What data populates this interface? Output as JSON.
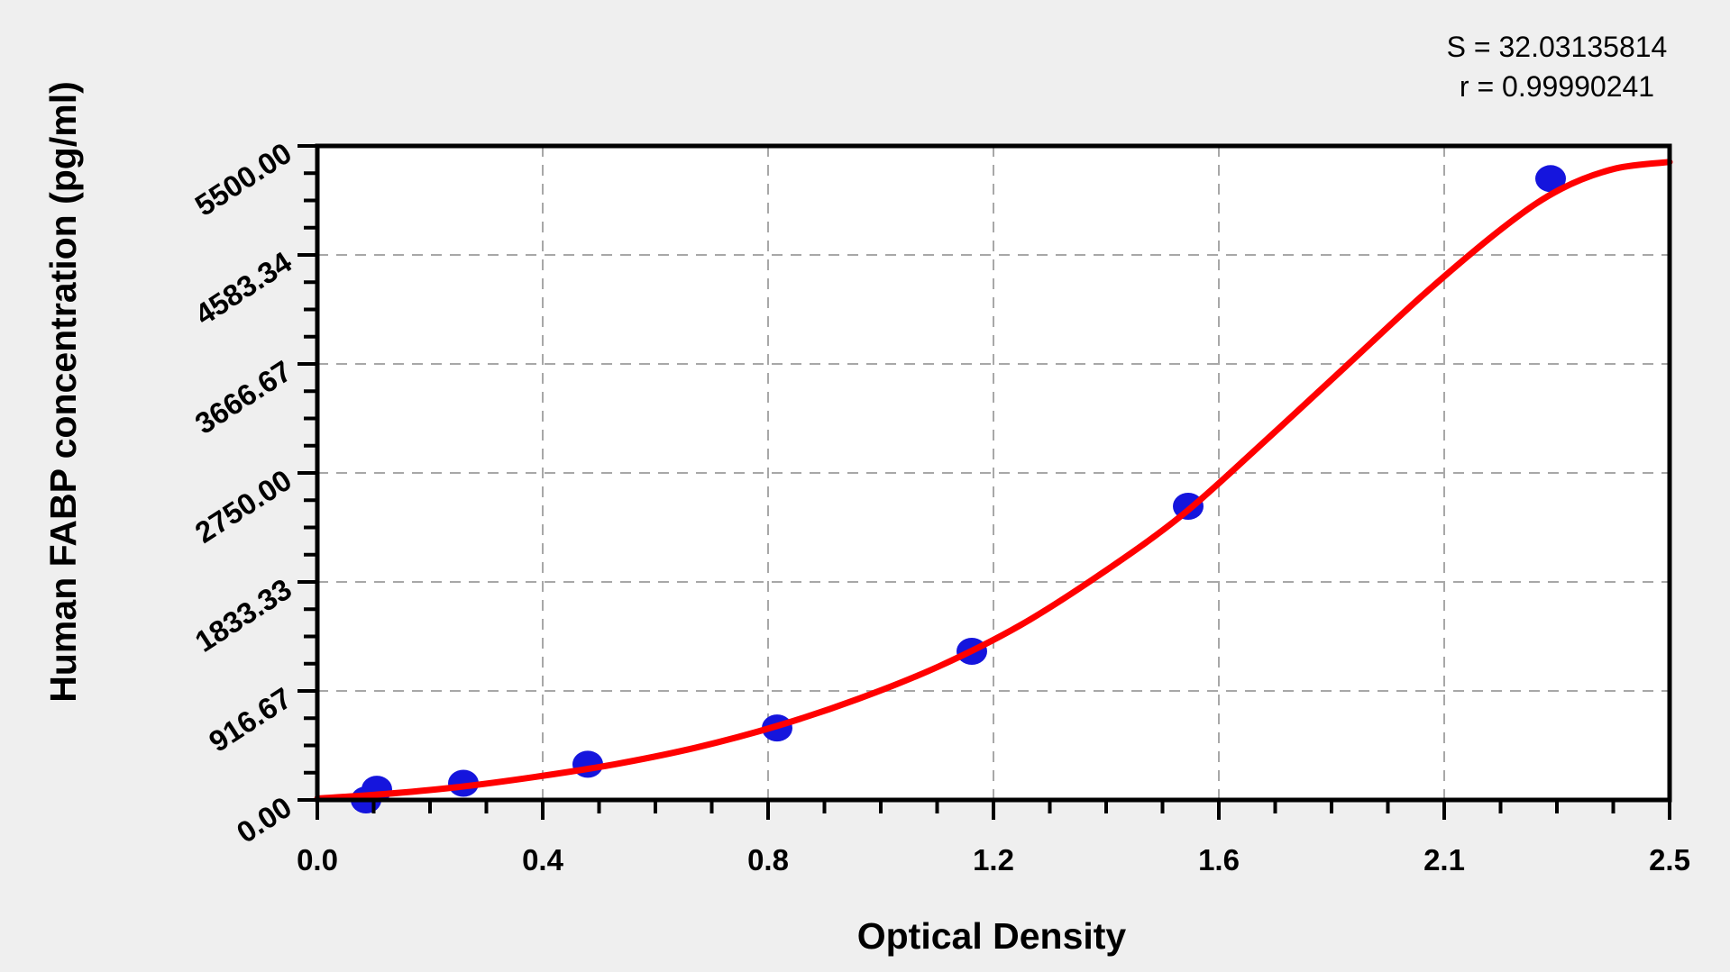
{
  "figure": {
    "background_color": "#efefef",
    "plot_background_color": "#ffffff",
    "border_color": "#000000",
    "grid_color": "#a8a8a8",
    "annotation": {
      "line1": "S = 32.03135814",
      "line2": "r = 0.99990241"
    }
  },
  "chart_data": {
    "type": "scatter",
    "title": "",
    "xlabel": "Optical Density",
    "ylabel": "Human FABP concentration (pg/ml)",
    "xlim": [
      0,
      2.5
    ],
    "ylim": [
      0,
      5500
    ],
    "x_tick_labels": [
      "0.0",
      "0.4",
      "0.8",
      "1.2",
      "1.6",
      "2.1",
      "2.5"
    ],
    "y_tick_labels": [
      "0.00",
      "916.67",
      "1833.33",
      "2750.00",
      "3666.67",
      "4583.34",
      "5500.00"
    ],
    "x_minor_divisions_per_major": 4,
    "y_minor_divisions_per_major": 4,
    "grid": "dashed gridlines at every major tick, both axes",
    "legend": "none",
    "fit_statistics": {
      "S": "32.03135814",
      "r": "0.99990241"
    },
    "series": [
      {
        "name": "standard data points",
        "type": "scatter",
        "marker": "ellipse",
        "color": "#1515dd",
        "points": [
          {
            "od": 0.09,
            "conc": 0
          },
          {
            "od": 0.11,
            "conc": 90
          },
          {
            "od": 0.27,
            "conc": 140
          },
          {
            "od": 0.5,
            "conc": 300
          },
          {
            "od": 0.85,
            "conc": 605
          },
          {
            "od": 1.21,
            "conc": 1250
          },
          {
            "od": 1.61,
            "conc": 2470
          },
          {
            "od": 2.28,
            "conc": 5225
          }
        ]
      },
      {
        "name": "4PL fitted standard curve",
        "type": "line",
        "color": "#ff0000",
        "points": [
          {
            "od": 0.0,
            "conc": 12
          },
          {
            "od": 0.12,
            "conc": 48
          },
          {
            "od": 0.25,
            "conc": 103
          },
          {
            "od": 0.4,
            "conc": 192
          },
          {
            "od": 0.55,
            "conc": 300
          },
          {
            "od": 0.7,
            "conc": 440
          },
          {
            "od": 0.85,
            "conc": 622
          },
          {
            "od": 1.0,
            "conc": 850
          },
          {
            "od": 1.15,
            "conc": 1125
          },
          {
            "od": 1.3,
            "conc": 1470
          },
          {
            "od": 1.45,
            "conc": 1905
          },
          {
            "od": 1.6,
            "conc": 2400
          },
          {
            "od": 1.75,
            "conc": 3010
          },
          {
            "od": 1.9,
            "conc": 3640
          },
          {
            "od": 2.05,
            "conc": 4270
          },
          {
            "od": 2.2,
            "conc": 4840
          },
          {
            "od": 2.3,
            "conc": 5140
          },
          {
            "od": 2.4,
            "conc": 5310
          },
          {
            "od": 2.5,
            "conc": 5365
          }
        ]
      }
    ]
  }
}
